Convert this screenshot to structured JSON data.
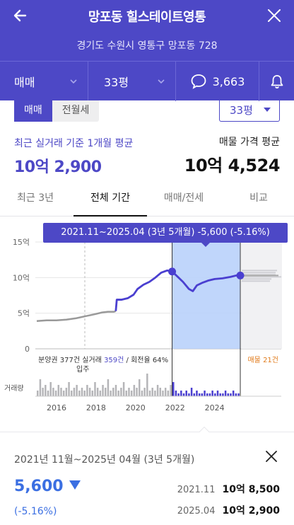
{
  "header": {
    "title": "망포동 힐스테이트영통",
    "address": "경기도 수원시 영통구 망포동 728"
  },
  "toolbar": {
    "deal_type": "매매",
    "size": "33평",
    "comment_count": "3,663"
  },
  "filter": {
    "toggle_sale": "매매",
    "toggle_rent": "전월세",
    "size_select": "33평"
  },
  "summary": {
    "recent_label": "최근 실거래 기준 1개월 평균",
    "recent_value": "10억 2,900",
    "listing_label": "매물 가격 평균",
    "listing_value": "10억 4,524"
  },
  "tabs": [
    {
      "label": "최근 3년"
    },
    {
      "label": "전체 기간"
    },
    {
      "label": "매매/전세"
    },
    {
      "label": "비교"
    }
  ],
  "tooltip": "2021.11~2025.04 (3년 5개월)  -5,600 (-5.16%)",
  "chart_data": {
    "type": "line",
    "y_ticks": [
      "15억",
      "10억",
      "5억",
      "0"
    ],
    "x_ticks": [
      "2016",
      "2018",
      "2020",
      "2022",
      "2024"
    ],
    "ylim": [
      0,
      15
    ],
    "annotations": {
      "move_in": "입주",
      "supply_and_trades": "분양권 377건",
      "trades_label": "실거래",
      "trades_value": "359건",
      "turnover": "/ 회전율 64%",
      "listings": "매물 21건",
      "volume_label": "거래량"
    },
    "series": [
      {
        "x": [
          2015.0,
          2015.5,
          2016.0,
          2016.5,
          2017.0,
          2017.5,
          2018.0,
          2018.3,
          2018.6,
          2018.9,
          2019.0,
          2019.05,
          2019.3,
          2019.6,
          2019.9,
          2020.1,
          2020.4,
          2020.7,
          2021.0,
          2021.3,
          2021.6,
          2021.85,
          2022.1,
          2022.4,
          2022.7,
          2022.9,
          2023.1,
          2023.4,
          2023.7,
          2024.0,
          2024.4,
          2024.8,
          2025.1,
          2025.3
        ],
        "values": [
          3.9,
          4.0,
          4.0,
          4.1,
          4.3,
          4.6,
          4.9,
          5.1,
          5.2,
          5.2,
          5.3,
          6.9,
          6.9,
          7.1,
          7.6,
          8.4,
          9.0,
          9.4,
          10.0,
          10.7,
          11.0,
          10.85,
          10.2,
          9.4,
          8.4,
          8.1,
          8.9,
          9.3,
          9.6,
          9.8,
          9.9,
          10.1,
          10.3,
          10.29
        ]
      }
    ],
    "selected_range": {
      "start": "2021.11",
      "end": "2025.04"
    },
    "volume": [
      2,
      6,
      3,
      4,
      2,
      5,
      3,
      2,
      4,
      3,
      2,
      3,
      5,
      2,
      3,
      4,
      2,
      3,
      2,
      4,
      3,
      2,
      5,
      3,
      2,
      4,
      3,
      6,
      2,
      3,
      4,
      2,
      3,
      5,
      2,
      3,
      2,
      4,
      3,
      6,
      2,
      3,
      8,
      2,
      3,
      2,
      4,
      3,
      2,
      3,
      2,
      4,
      5,
      2,
      1,
      2,
      1,
      2,
      1,
      3,
      1,
      2,
      1,
      1,
      2,
      1,
      1,
      2,
      1,
      2,
      1,
      1,
      2,
      1,
      1,
      2,
      1,
      1
    ]
  },
  "bottom": {
    "period": "2021년 11월~2025년 04월 (3년 5개월)",
    "change": "5,600",
    "change_pct": "(-5.16%)",
    "start_date": "2021.11",
    "start_value": "10억 8,500",
    "end_date": "2025.04",
    "end_value": "10억 2,900"
  },
  "colors": {
    "brand": "#4d48c6",
    "down": "#3b6fe2",
    "range_fill": "#b9d2fb",
    "listing_orange": "#e07a1a"
  }
}
